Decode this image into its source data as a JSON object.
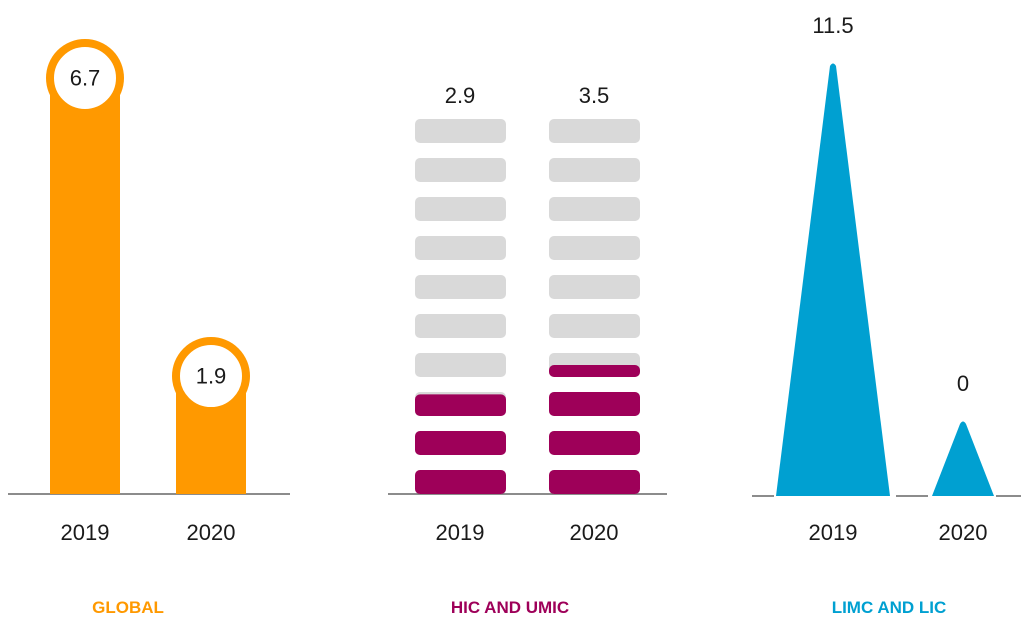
{
  "colors": {
    "global": "#ff9900",
    "hic_umic": "#9e0059",
    "limc_lic": "#00a0d1",
    "placeholder": "#d9d9d9",
    "axis": "#666666"
  },
  "chart_data": [
    {
      "type": "bar",
      "group_label": "GLOBAL",
      "categories": [
        "2019",
        "2020"
      ],
      "values": [
        6.7,
        1.9
      ],
      "value_labels": [
        "6.7",
        "1.9"
      ]
    },
    {
      "type": "bar",
      "group_label": "HIC AND UMIC",
      "categories": [
        "2019",
        "2020"
      ],
      "values": [
        2.9,
        3.5
      ],
      "value_labels": [
        "2.9",
        "3.5"
      ],
      "max_units": 10
    },
    {
      "type": "bar",
      "group_label": "LIMC AND LIC",
      "categories": [
        "2019",
        "2020"
      ],
      "values": [
        11.5,
        0
      ],
      "value_labels": [
        "11.5",
        "0"
      ]
    }
  ]
}
